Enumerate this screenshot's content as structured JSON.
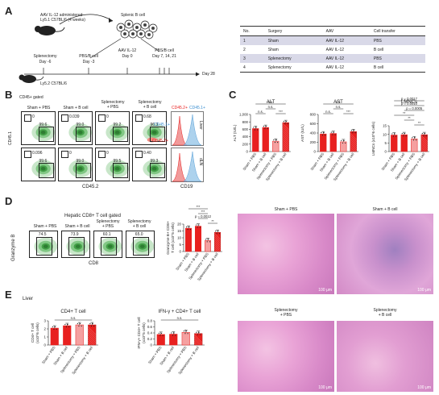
{
  "panels": {
    "a": "A",
    "b": "B",
    "c": "C",
    "d": "D",
    "e": "E"
  },
  "schema": {
    "donor": "AAV IL-12 administered\nLy5.1 C57BL/6 (4 weeks)",
    "splenic": "Splenic B cell",
    "recipient": "Ly5.2 C57BL/6",
    "steps": [
      {
        "label": "Splenectomy",
        "day": "Day -6"
      },
      {
        "label": "PBS/B cell",
        "day": "Day -3"
      },
      {
        "label": "AAV IL-12",
        "day": "Day 0"
      },
      {
        "label": "PBS/B cell",
        "day": "Day 7, 14, 21"
      }
    ],
    "end": "Day 28"
  },
  "table": {
    "headers": [
      "No.",
      "Surgery",
      "AAV",
      "Cell transfer"
    ],
    "rows": [
      [
        "1",
        "Sham",
        "AAV IL-12",
        "PBS"
      ],
      [
        "2",
        "Sham",
        "AAV IL-12",
        "B cell"
      ],
      [
        "3",
        "Splenectomy",
        "AAV IL-12",
        "PBS"
      ],
      [
        "4",
        "Splenectomy",
        "AAV IL-12",
        "B cell"
      ]
    ]
  },
  "flowB": {
    "gated": "CD45+ gated",
    "cols": [
      "Sham + PBS",
      "Sham + B cell",
      "Splenectomy\n+ PBS",
      "Splenectomy\n+ B cell"
    ],
    "xaxis": "CD45.2",
    "yaxis": "CD45.1",
    "row1": [
      {
        "lo": "0",
        "hi": "99.6"
      },
      {
        "lo": "0.039",
        "hi": "99.0"
      },
      {
        "lo": "0",
        "hi": "99.2"
      },
      {
        "lo": "0.68",
        "hi": "96.3"
      }
    ],
    "row2": [
      {
        "lo": "0.096",
        "hi": "99.6"
      },
      {
        "lo": "0",
        "hi": "99.0"
      },
      {
        "lo": "0",
        "hi": "99.5"
      },
      {
        "lo": "0.40",
        "hi": "99.3"
      }
    ],
    "legend1": "CD45.1+",
    "legend2": "CD45.2+",
    "histo": {
      "title1": "CD45.2+",
      "title2": "CD45.1+",
      "rows": [
        "Liver",
        "dLN"
      ],
      "xaxis": "CD19"
    }
  },
  "flowD": {
    "title": "Hepatic CD8+ T cell gated",
    "cols": [
      "Sham + PBS",
      "Sham + B cell",
      "Splenectomy\n+ PBS",
      "Splenectomy\n+ B cell"
    ],
    "vals": [
      "74.5",
      "73.9",
      "60.1",
      "65.0"
    ],
    "xaxis": "CD8",
    "yaxis": "Granzyme B"
  },
  "groups": [
    "Sham + PBS",
    "Sham + B cell",
    "Splenectomy + PBS",
    "Splenectomy + B cell"
  ],
  "charts": {
    "alt": {
      "title": "ALT",
      "ylabel": "ALT (IU/L)",
      "ticks": [
        "1,000",
        "800",
        "600",
        "400",
        "200",
        "0"
      ],
      "values": [
        620,
        650,
        280,
        780
      ],
      "max": 1000,
      "sig": [
        "n.s.",
        "n.s.",
        "***",
        "n.s."
      ]
    },
    "ast": {
      "title": "AST",
      "ylabel": "AST (IU/L)",
      "ticks": [
        "800",
        "600",
        "400",
        "200",
        "0"
      ],
      "values": [
        380,
        390,
        210,
        430
      ],
      "max": 800,
      "sig": [
        "n.s.",
        "n.s.",
        "***",
        "n.s."
      ]
    },
    "lmnc": {
      "title": "LMNCs",
      "ylabel": "LMNCs (x10^6 cells)",
      "ticks": [
        "15",
        "10",
        "5",
        "0"
      ],
      "values": [
        9.6,
        9.8,
        7.4,
        9.8
      ],
      "max": 15,
      "sig": [
        "p = 0.0017",
        "p = 0.0010",
        "p = 0.0005",
        "**",
        "**",
        "**"
      ]
    },
    "grz": {
      "title": "",
      "ylabel": "Granzyme B+ CD8+\nT cell (x10^5 cells)",
      "ticks": [
        "20",
        "15",
        "10",
        "5",
        "0"
      ],
      "values": [
        17,
        18.5,
        8,
        14
      ],
      "max": 25,
      "sig": [
        "***",
        "***",
        "p = 0.0012",
        "**"
      ]
    },
    "cd4": {
      "title": "CD4+ T cell",
      "ylabel": "CD4+ T cell\n(x10^6 cells)",
      "ticks": [
        "3",
        "2",
        "1",
        "0"
      ],
      "values": [
        2.1,
        2.4,
        2.5,
        2.5
      ],
      "max": 3.5,
      "sig": [
        "n.s."
      ]
    },
    "ifng": {
      "title": "IFN-γ + CD4+ T cell",
      "ylabel": "IFN-γ+ CD4+ T cell\n(x10^5 cells)",
      "ticks": [
        "0.8",
        "0.6",
        "0.4",
        "0.2",
        "0"
      ],
      "values": [
        0.35,
        0.36,
        0.42,
        0.38
      ],
      "max": 0.8,
      "sig": [
        "n.s."
      ]
    }
  },
  "liver": "Liver",
  "histo": [
    {
      "title": "Sham + PBS",
      "scale": "100 μm"
    },
    {
      "title": "Sham + B cell",
      "scale": "100 μm"
    },
    {
      "title": "Splenectomy\n+ PBS",
      "scale": "100 μm"
    },
    {
      "title": "Splenectomy\n+ B cell",
      "scale": "100 μm"
    }
  ],
  "colors": {
    "red": "#e8201f",
    "pink": "#f5a0a0",
    "blue": "#5aaad8",
    "gate": "#222"
  }
}
